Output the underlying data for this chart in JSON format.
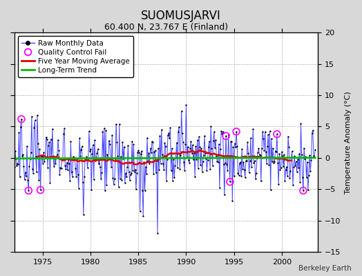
{
  "title": "SUOMUSJARVI",
  "subtitle": "60.400 N, 23.767 E (Finland)",
  "ylabel": "Temperature Anomaly (°C)",
  "credit": "Berkeley Earth",
  "year_start": 1972.0,
  "year_end": 2003.5,
  "ylim": [
    -15,
    20
  ],
  "yticks": [
    -15,
    -10,
    -5,
    0,
    5,
    10,
    15,
    20
  ],
  "xticks": [
    1975,
    1980,
    1985,
    1990,
    1995,
    2000
  ],
  "bg_color": "#d8d8d8",
  "plot_bg_color": "#ffffff",
  "grid_color": "#b0b0b0",
  "raw_line_color": "#4444ff",
  "raw_dot_color": "#000000",
  "ma_color": "#dd0000",
  "trend_color": "#00bb00",
  "qc_color": "#ff00ff",
  "legend_entries": [
    "Raw Monthly Data",
    "Quality Control Fail",
    "Five Year Moving Average",
    "Long-Term Trend"
  ]
}
